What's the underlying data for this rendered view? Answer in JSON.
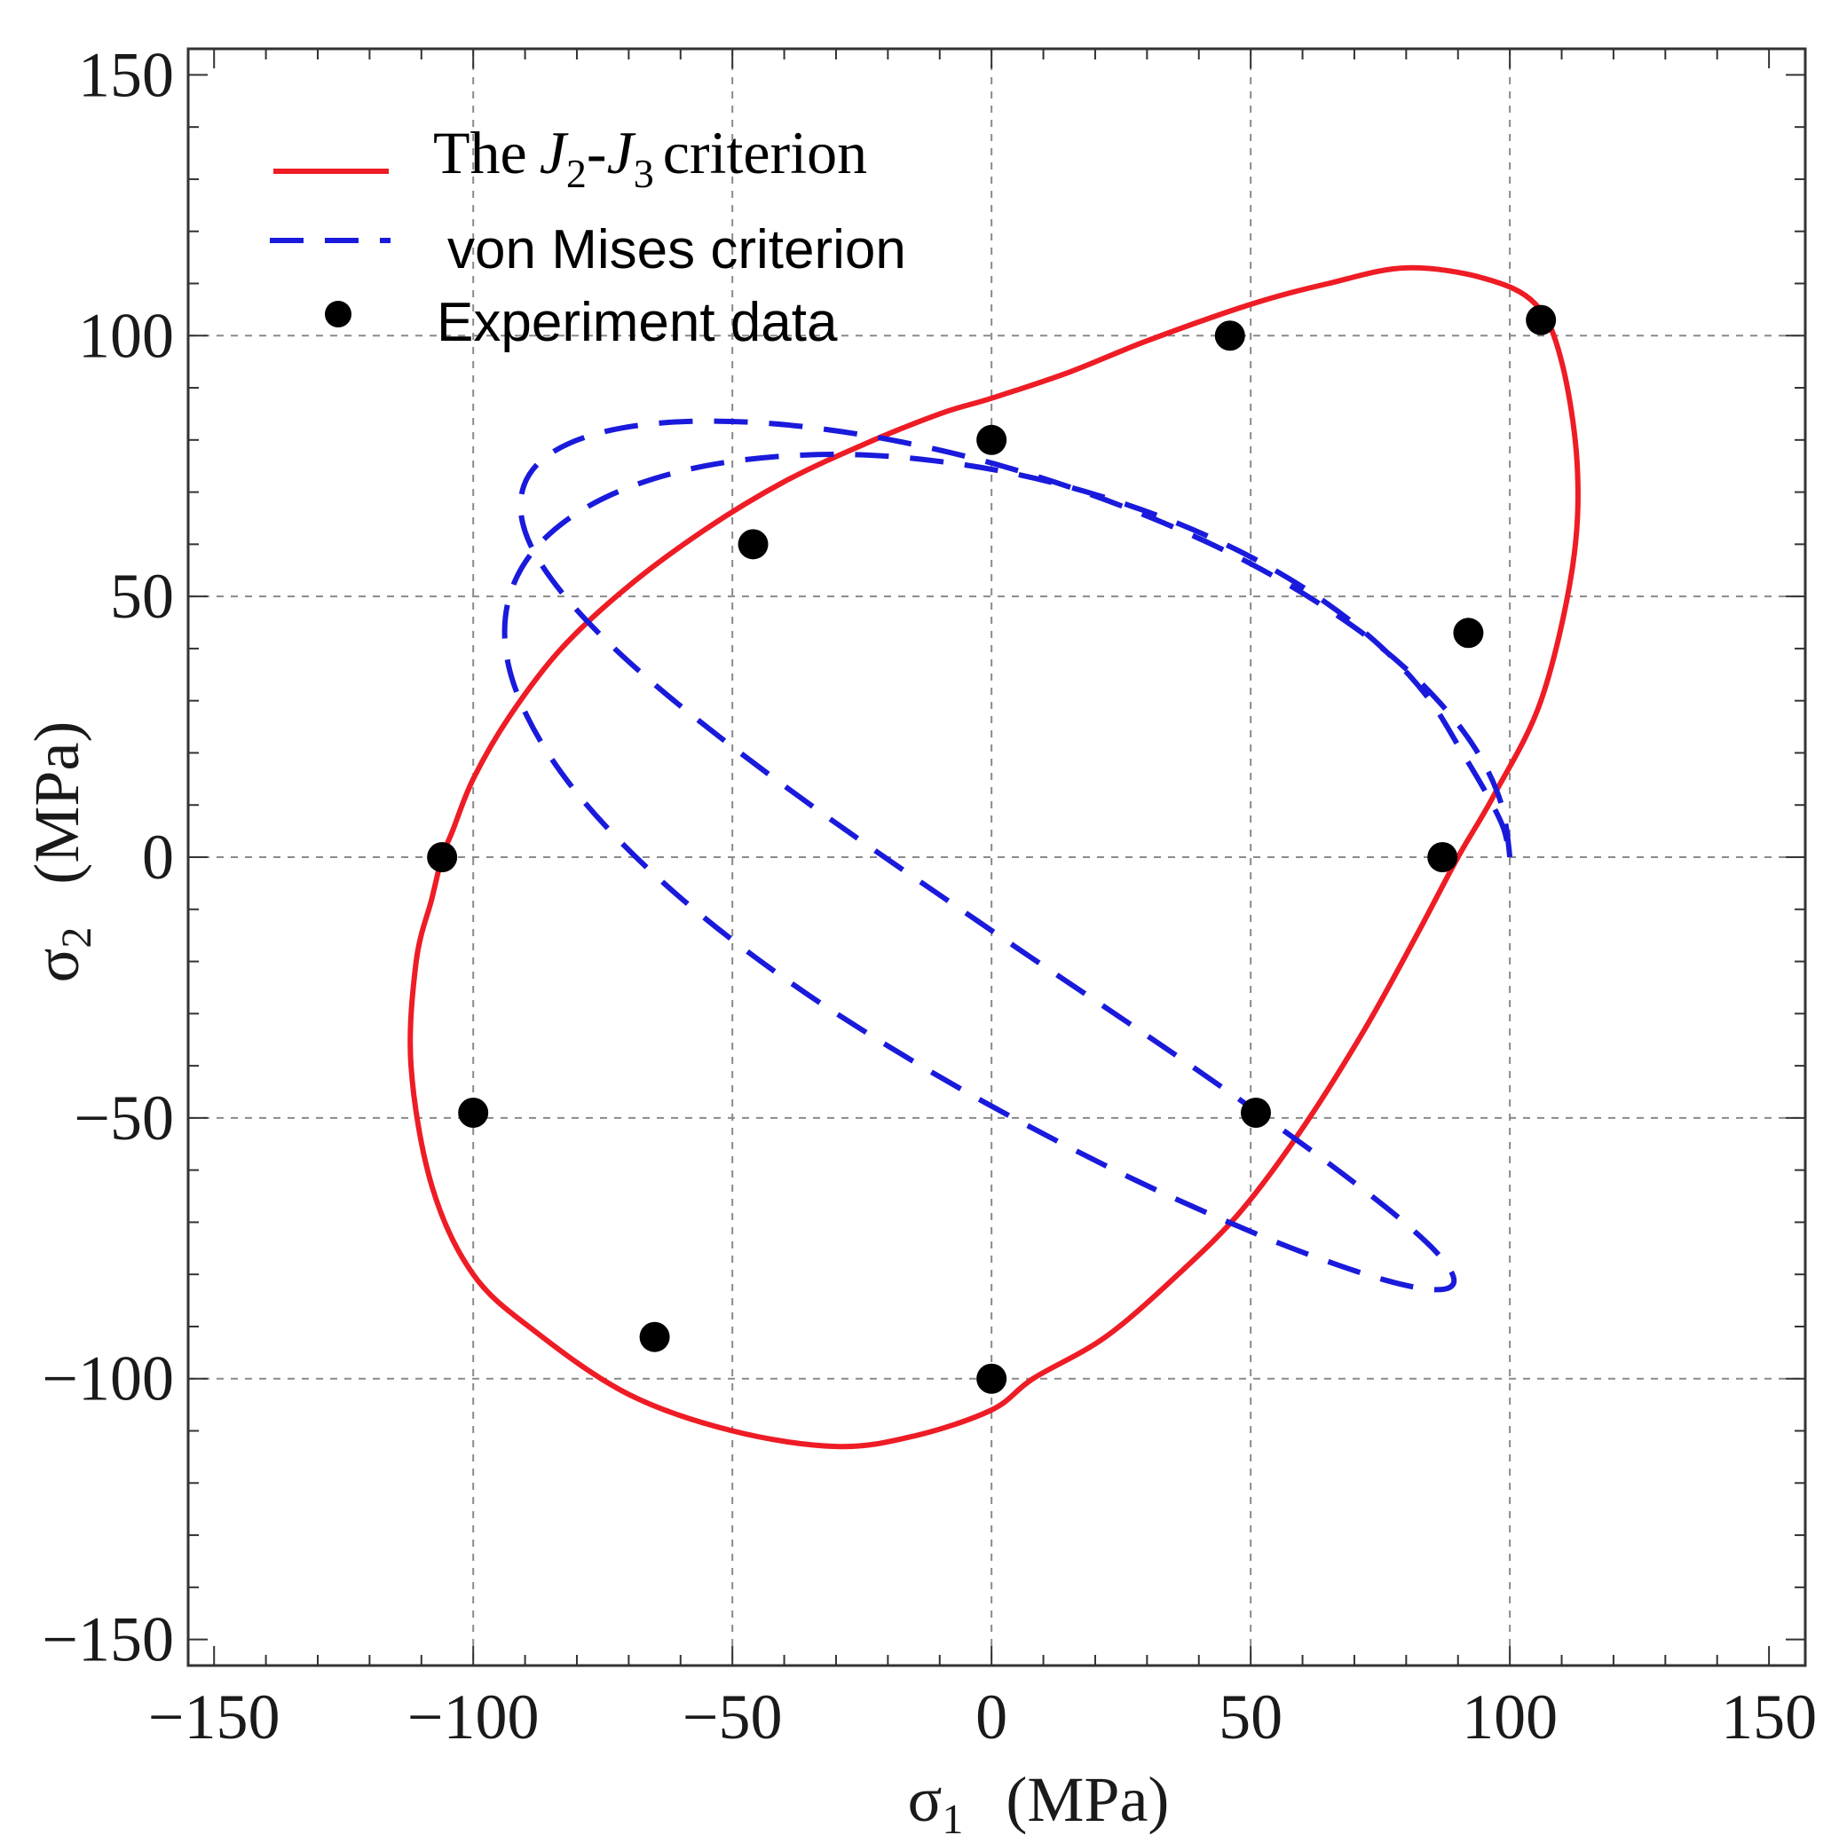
{
  "chart_data": {
    "type": "scatter",
    "title": "",
    "xlabel": "σ1   (MPa)",
    "xlabel_symbol": "σ",
    "xlabel_sub": "1",
    "xlabel_unit": "(MPa)",
    "ylabel": "σ2   (MPa)",
    "ylabel_symbol": "σ",
    "ylabel_sub": "2",
    "ylabel_unit": "(MPa)",
    "xlim": [
      -155,
      157
    ],
    "ylim": [
      -155,
      155
    ],
    "xticks": [
      -150,
      -100,
      -50,
      0,
      50,
      100,
      150
    ],
    "yticks": [
      -150,
      -100,
      -50,
      0,
      50,
      100,
      150
    ],
    "grid": true,
    "legend_position": "top-left",
    "legend": [
      {
        "name": "The J2-J3 criterion",
        "style": "solid",
        "color": "#ee1c25"
      },
      {
        "name": "von Mises criterion",
        "style": "dashed",
        "color": "#1a1adc"
      },
      {
        "name": "Experiment data",
        "style": "marker",
        "color": "#000000"
      }
    ],
    "legend_text": {
      "j2j3_prefix": "The",
      "j2j3_j": "J",
      "j2j3_sub2": "2",
      "j2j3_dash": "-",
      "j2j3_sub3": "3",
      "j2j3_suffix": "criterion",
      "mises": "von Mises criterion",
      "experiment": "Experiment data"
    },
    "series": [
      {
        "name": "The J2-J3 criterion",
        "style": "solid",
        "color": "#ee1c25",
        "x": [
          -106,
          -104,
          -100,
          -93,
          -83,
          -70,
          -55,
          -40,
          -25,
          -10,
          0,
          15,
          30,
          50,
          65,
          80,
          95,
          105,
          110,
          113,
          112,
          106,
          97,
          90,
          82,
          72,
          60,
          48,
          36,
          22,
          8,
          0,
          -15,
          -30,
          -50,
          -70,
          -88,
          -100,
          -108,
          -112,
          -111,
          -108,
          -106
        ],
        "y": [
          0,
          5,
          15,
          27,
          40,
          52,
          63,
          72,
          79,
          85,
          88,
          93,
          99,
          106,
          110,
          113,
          111,
          106,
          95,
          75,
          55,
          30,
          12,
          0,
          -15,
          -33,
          -52,
          -68,
          -80,
          -92,
          -100,
          -106,
          -111,
          -113,
          -110,
          -103,
          -91,
          -80,
          -63,
          -40,
          -20,
          -8,
          0
        ]
      },
      {
        "name": "von Mises criterion",
        "style": "dashed",
        "color": "#1a1adc",
        "x": [
          100,
          98.3,
          93.4,
          85.6,
          75.3,
          62.8,
          48.6,
          33.2,
          17.0,
          0.6,
          -15.8,
          -31.7,
          -46.5,
          -59.9,
          -71.3,
          -80.4,
          -86.8,
          -90.2,
          -90.7,
          -88.2,
          -82.7,
          -74.7,
          -64.5,
          -52.4,
          -38.9,
          -24.4,
          -9.2,
          6.1,
          21.2,
          35.6,
          48.9,
          60.8,
          70.9,
          79.0,
          84.9,
          88.3,
          89.2,
          87.5,
          83.2,
          76.3,
          67.1,
          55.7,
          42.5,
          27.9,
          12.4,
          -3.7,
          -19.8,
          -35.5,
          -50.1,
          -63.2,
          -74.4,
          -83.3,
          -89.6,
          -93.2,
          -93.8,
          -91.4,
          -86.1,
          -78.1,
          -67.8,
          -55.4,
          -41.6,
          -26.6,
          -11.0,
          5.0,
          20.8,
          36.2,
          50.7,
          63.8,
          75.1,
          84.2,
          90.8,
          95.6,
          98.8,
          100
        ],
        "y": [
          0,
          10.4,
          20.7,
          30.6,
          40.1,
          48.9,
          57.0,
          64.1,
          70.3,
          75.4,
          79.3,
          82.0,
          83.4,
          83.5,
          82.3,
          79.8,
          76.1,
          71.3,
          65.3,
          58.4,
          50.5,
          41.9,
          32.7,
          23.0,
          12.9,
          2.6,
          -7.8,
          -18.2,
          -28.3,
          -38.0,
          -47.2,
          -55.6,
          -63.1,
          -69.5,
          -74.8,
          -78.8,
          -81.5,
          -82.8,
          -82.7,
          -81.2,
          -78.3,
          -74.1,
          -68.6,
          -62.0,
          -54.3,
          -45.7,
          -36.3,
          -26.3,
          -15.8,
          -5.0,
          5.9,
          16.6,
          27.0,
          36.8,
          45.9,
          54.1,
          61.2,
          67.1,
          71.7,
          75.0,
          76.8,
          77.2,
          76.0,
          73.4,
          69.3,
          63.9,
          57.2,
          49.3,
          40.4,
          30.6,
          20.1,
          12.0,
          5.5,
          0
        ]
      },
      {
        "name": "Experiment data",
        "style": "marker",
        "color": "#000000",
        "x": [
          -106,
          -46,
          0,
          46,
          106,
          92,
          87,
          51,
          0,
          -65,
          -100
        ],
        "y": [
          0,
          60,
          80,
          100,
          103,
          43,
          0,
          -49,
          -100,
          -92,
          -49
        ]
      }
    ]
  }
}
